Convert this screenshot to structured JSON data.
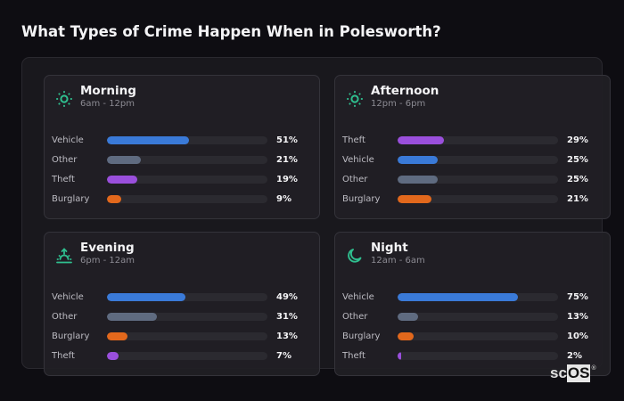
{
  "title": "What Types of Crime Happen When in Polesworth?",
  "colors": {
    "Vehicle": "#3a7ad8",
    "Other": "#5f6b80",
    "Theft": "#9a4fdc",
    "Burglary": "#e2681c",
    "icon": "#2fbf8f"
  },
  "cards": [
    {
      "name": "Morning",
      "range": "6am - 12pm",
      "icon": "sun-icon",
      "rows": [
        {
          "label": "Vehicle",
          "value": 51,
          "text": "51%"
        },
        {
          "label": "Other",
          "value": 21,
          "text": "21%"
        },
        {
          "label": "Theft",
          "value": 19,
          "text": "19%"
        },
        {
          "label": "Burglary",
          "value": 9,
          "text": "9%"
        }
      ]
    },
    {
      "name": "Afternoon",
      "range": "12pm - 6pm",
      "icon": "sun-icon",
      "rows": [
        {
          "label": "Theft",
          "value": 29,
          "text": "29%"
        },
        {
          "label": "Vehicle",
          "value": 25,
          "text": "25%"
        },
        {
          "label": "Other",
          "value": 25,
          "text": "25%"
        },
        {
          "label": "Burglary",
          "value": 21,
          "text": "21%"
        }
      ]
    },
    {
      "name": "Evening",
      "range": "6pm - 12am",
      "icon": "sunset-icon",
      "rows": [
        {
          "label": "Vehicle",
          "value": 49,
          "text": "49%"
        },
        {
          "label": "Other",
          "value": 31,
          "text": "31%"
        },
        {
          "label": "Burglary",
          "value": 13,
          "text": "13%"
        },
        {
          "label": "Theft",
          "value": 7,
          "text": "7%"
        }
      ]
    },
    {
      "name": "Night",
      "range": "12am - 6am",
      "icon": "moon-icon",
      "rows": [
        {
          "label": "Vehicle",
          "value": 75,
          "text": "75%"
        },
        {
          "label": "Other",
          "value": 13,
          "text": "13%"
        },
        {
          "label": "Burglary",
          "value": 10,
          "text": "10%"
        },
        {
          "label": "Theft",
          "value": 2,
          "text": "2%"
        }
      ]
    }
  ],
  "brand": {
    "sc": "sc",
    "os": "OS",
    "reg": "®"
  },
  "chart_data": {
    "type": "bar",
    "title": "What Types of Crime Happen When in Polesworth?",
    "orientation": "horizontal",
    "unit": "%",
    "xlim": [
      0,
      100
    ],
    "panels": [
      {
        "title": "Morning",
        "subtitle": "6am - 12pm",
        "categories": [
          "Vehicle",
          "Other",
          "Theft",
          "Burglary"
        ],
        "values": [
          51,
          21,
          19,
          9
        ]
      },
      {
        "title": "Afternoon",
        "subtitle": "12pm - 6pm",
        "categories": [
          "Theft",
          "Vehicle",
          "Other",
          "Burglary"
        ],
        "values": [
          29,
          25,
          25,
          21
        ]
      },
      {
        "title": "Evening",
        "subtitle": "6pm - 12am",
        "categories": [
          "Vehicle",
          "Other",
          "Burglary",
          "Theft"
        ],
        "values": [
          49,
          31,
          13,
          7
        ]
      },
      {
        "title": "Night",
        "subtitle": "12am - 6am",
        "categories": [
          "Vehicle",
          "Other",
          "Burglary",
          "Theft"
        ],
        "values": [
          75,
          13,
          10,
          2
        ]
      }
    ]
  }
}
